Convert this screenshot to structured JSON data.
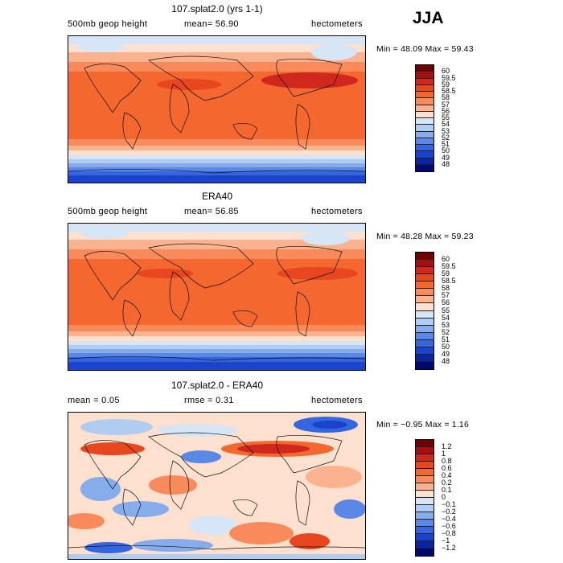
{
  "season_label": "JJA",
  "panels": [
    {
      "title": "107.splat2.0 (yrs 1-1)",
      "left_label": "500mb geop height",
      "center_label": "mean=  56.90",
      "right_label": "hectometers",
      "stats": "Min =  48.09 Max =  59.43",
      "colorbar": {
        "labels": [
          "60",
          "59.5",
          "59",
          "58.5",
          "58",
          "57",
          "56",
          "55",
          "54",
          "53",
          "52",
          "51",
          "50",
          "49",
          "48"
        ],
        "colors": [
          "#6e0000",
          "#a50f0f",
          "#d0281c",
          "#e8461f",
          "#f4672f",
          "#f88a5c",
          "#fbb38f",
          "#fde0cd",
          "#d6e6f6",
          "#b0ccf0",
          "#86aceb",
          "#5a88e6",
          "#3565df",
          "#1a44cb",
          "#0a25a3",
          "#020a70"
        ]
      },
      "chart_data": {
        "type": "heatmap",
        "title": "107.splat2.0 (yrs 1-1)",
        "field": "500mb geop height",
        "units": "hectometers",
        "mean": 56.9,
        "min": 48.09,
        "max": 59.43,
        "levels": [
          48,
          49,
          50,
          51,
          52,
          53,
          54,
          55,
          56,
          57,
          58,
          58.5,
          59,
          59.5,
          60
        ],
        "domain": "global",
        "x": "longitude",
        "y": "latitude"
      }
    },
    {
      "title": "ERA40",
      "left_label": "500mb geop height",
      "center_label": "mean=  56.85",
      "right_label": "hectometers",
      "stats": "Min =  48.28 Max =  59.23",
      "colorbar": {
        "labels": [
          "60",
          "59.5",
          "59",
          "58.5",
          "58",
          "57",
          "56",
          "55",
          "54",
          "53",
          "52",
          "51",
          "50",
          "49",
          "48"
        ],
        "colors": [
          "#6e0000",
          "#a50f0f",
          "#d0281c",
          "#e8461f",
          "#f4672f",
          "#f88a5c",
          "#fbb38f",
          "#fde0cd",
          "#d6e6f6",
          "#b0ccf0",
          "#86aceb",
          "#5a88e6",
          "#3565df",
          "#1a44cb",
          "#0a25a3",
          "#020a70"
        ]
      },
      "chart_data": {
        "type": "heatmap",
        "title": "ERA40",
        "field": "500mb geop height",
        "units": "hectometers",
        "mean": 56.85,
        "min": 48.28,
        "max": 59.23,
        "levels": [
          48,
          49,
          50,
          51,
          52,
          53,
          54,
          55,
          56,
          57,
          58,
          58.5,
          59,
          59.5,
          60
        ],
        "domain": "global",
        "x": "longitude",
        "y": "latitude"
      }
    },
    {
      "title": "107.splat2.0 - ERA40",
      "left_label": "mean =    0.05",
      "center_label": "rmse =    0.31",
      "right_label": "hectometers",
      "stats": "Min =  −0.95 Max =   1.16",
      "colorbar": {
        "labels": [
          "1.2",
          "1",
          "0.8",
          "0.6",
          "0.4",
          "0.2",
          "0.1",
          "0",
          "−0.1",
          "−0.2",
          "−0.4",
          "−0.6",
          "−0.8",
          "−1",
          "−1.2"
        ],
        "colors": [
          "#6e0000",
          "#a50f0f",
          "#d0281c",
          "#e8461f",
          "#f4672f",
          "#f88a5c",
          "#fbb38f",
          "#fde0cd",
          "#d6e6f6",
          "#b0ccf0",
          "#86aceb",
          "#5a88e6",
          "#3565df",
          "#1a44cb",
          "#0a25a3",
          "#020a70"
        ]
      },
      "chart_data": {
        "type": "heatmap",
        "title": "107.splat2.0 - ERA40",
        "units": "hectometers",
        "mean": 0.05,
        "rmse": 0.31,
        "min": -0.95,
        "max": 1.16,
        "levels": [
          -1.2,
          -1,
          -0.8,
          -0.6,
          -0.4,
          -0.2,
          -0.1,
          0,
          0.1,
          0.2,
          0.4,
          0.6,
          0.8,
          1,
          1.2
        ],
        "domain": "global",
        "x": "longitude",
        "y": "latitude"
      }
    }
  ]
}
